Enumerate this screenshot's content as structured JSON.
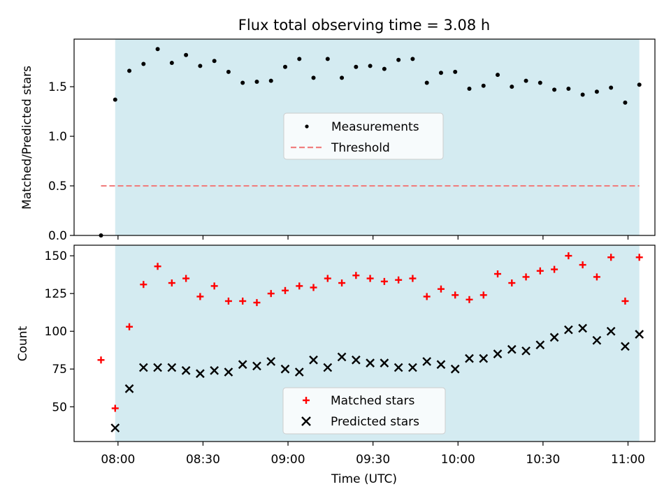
{
  "figure": {
    "title": "Flux total observing time = 3.08 h",
    "xlabel": "Time (UTC)",
    "xticks": [
      "08:00",
      "08:30",
      "09:00",
      "09:30",
      "10:00",
      "10:30",
      "11:00"
    ]
  },
  "colors": {
    "observing_band": "#d4ebf1",
    "threshold": "#f07f7f",
    "matched": "#ff0000",
    "predicted": "#000000"
  },
  "chart_data": [
    {
      "type": "scatter",
      "ylabel": "Matched/Predicted stars",
      "ylim": [
        0,
        1.98
      ],
      "yticks": [
        "0.0",
        "0.5",
        "1.0",
        "1.5"
      ],
      "xlim_minutes_utc": [
        464.5,
        669.5
      ],
      "observing_window_minutes_utc": [
        479,
        664
      ],
      "legend": "center",
      "series": [
        {
          "name": "Measurements",
          "marker": "dot",
          "x_minutes_utc": [
            474,
            479,
            484,
            489,
            494,
            499,
            504,
            509,
            514,
            519,
            524,
            529,
            534,
            539,
            544,
            549,
            554,
            559,
            564,
            569,
            574,
            579,
            584,
            589,
            594,
            599,
            604,
            609,
            614,
            619,
            624,
            629,
            634,
            639,
            644,
            649,
            654,
            659,
            664
          ],
          "values": [
            0.0,
            1.37,
            1.66,
            1.73,
            1.88,
            1.74,
            1.82,
            1.71,
            1.76,
            1.65,
            1.54,
            1.55,
            1.56,
            1.7,
            1.78,
            1.59,
            1.78,
            1.59,
            1.7,
            1.71,
            1.68,
            1.77,
            1.78,
            1.54,
            1.64,
            1.65,
            1.48,
            1.51,
            1.62,
            1.5,
            1.56,
            1.54,
            1.47,
            1.48,
            1.42,
            1.45,
            1.49,
            1.34,
            1.52
          ]
        },
        {
          "name": "Threshold",
          "marker": "dashed-line",
          "x_minutes_utc": [
            474,
            664
          ],
          "values": [
            0.5,
            0.5
          ]
        }
      ]
    },
    {
      "type": "scatter",
      "ylabel": "Count",
      "ylim": [
        27,
        157
      ],
      "yticks": [
        "50",
        "75",
        "100",
        "125",
        "150"
      ],
      "xlim_minutes_utc": [
        464.5,
        669.5
      ],
      "observing_window_minutes_utc": [
        479,
        664
      ],
      "legend": "lower center",
      "series": [
        {
          "name": "Matched stars",
          "marker": "plus",
          "x_minutes_utc": [
            474,
            479,
            484,
            489,
            494,
            499,
            504,
            509,
            514,
            519,
            524,
            529,
            534,
            539,
            544,
            549,
            554,
            559,
            564,
            569,
            574,
            579,
            584,
            589,
            594,
            599,
            604,
            609,
            614,
            619,
            624,
            629,
            634,
            639,
            644,
            649,
            654,
            659,
            664
          ],
          "values": [
            81,
            49,
            103,
            131,
            143,
            132,
            135,
            123,
            130,
            120,
            120,
            119,
            125,
            127,
            130,
            129,
            135,
            132,
            137,
            135,
            133,
            134,
            135,
            123,
            128,
            124,
            121,
            124,
            138,
            132,
            136,
            140,
            141,
            150,
            144,
            136,
            149,
            120,
            149
          ]
        },
        {
          "name": "Predicted stars",
          "marker": "x",
          "x_minutes_utc": [
            479,
            484,
            489,
            494,
            499,
            504,
            509,
            514,
            519,
            524,
            529,
            534,
            539,
            544,
            549,
            554,
            559,
            564,
            569,
            574,
            579,
            584,
            589,
            594,
            599,
            604,
            609,
            614,
            619,
            624,
            629,
            634,
            639,
            644,
            649,
            654,
            659,
            664
          ],
          "values": [
            36,
            62,
            76,
            76,
            76,
            74,
            72,
            74,
            73,
            78,
            77,
            80,
            75,
            73,
            81,
            76,
            83,
            81,
            79,
            79,
            76,
            76,
            80,
            78,
            75,
            82,
            82,
            85,
            88,
            87,
            91,
            96,
            101,
            102,
            94,
            100,
            90,
            98
          ]
        }
      ]
    }
  ]
}
